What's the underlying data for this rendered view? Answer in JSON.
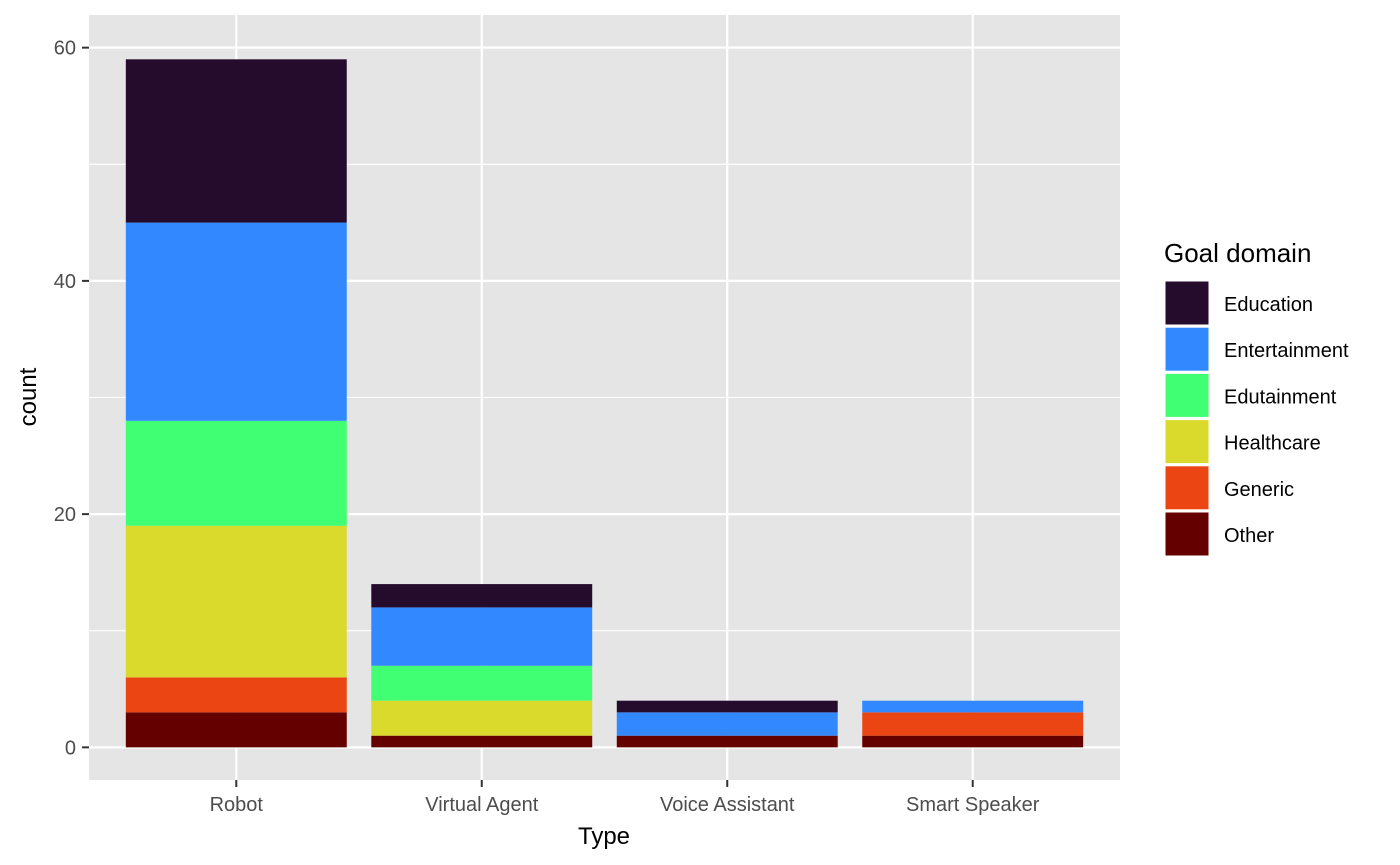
{
  "chart_data": {
    "type": "bar",
    "stacked": true,
    "xlabel": "Type",
    "ylabel": "count",
    "categories": [
      "Robot",
      "Virtual Agent",
      "Voice Assistant",
      "Smart Speaker"
    ],
    "ylim": [
      -2.8,
      62.8
    ],
    "yticks": [
      0,
      20,
      40,
      60
    ],
    "grid": true,
    "legend": {
      "title": "Goal domain",
      "position": "right"
    },
    "series": [
      {
        "name": "Education",
        "color": "#260C2C",
        "values": [
          14,
          2,
          1,
          0
        ]
      },
      {
        "name": "Entertainment",
        "color": "#3288FF",
        "values": [
          17,
          5,
          2,
          1
        ]
      },
      {
        "name": "Edutainment",
        "color": "#40FF72",
        "values": [
          9,
          3,
          0,
          0
        ]
      },
      {
        "name": "Healthcare",
        "color": "#DADA2C",
        "values": [
          13,
          3,
          0,
          0
        ]
      },
      {
        "name": "Generic",
        "color": "#EA4513",
        "values": [
          3,
          0,
          0,
          2
        ]
      },
      {
        "name": "Other",
        "color": "#650000",
        "values": [
          3,
          1,
          1,
          1
        ]
      }
    ],
    "panel_background": "#E5E5E5",
    "grid_color": "#FFFFFF"
  }
}
